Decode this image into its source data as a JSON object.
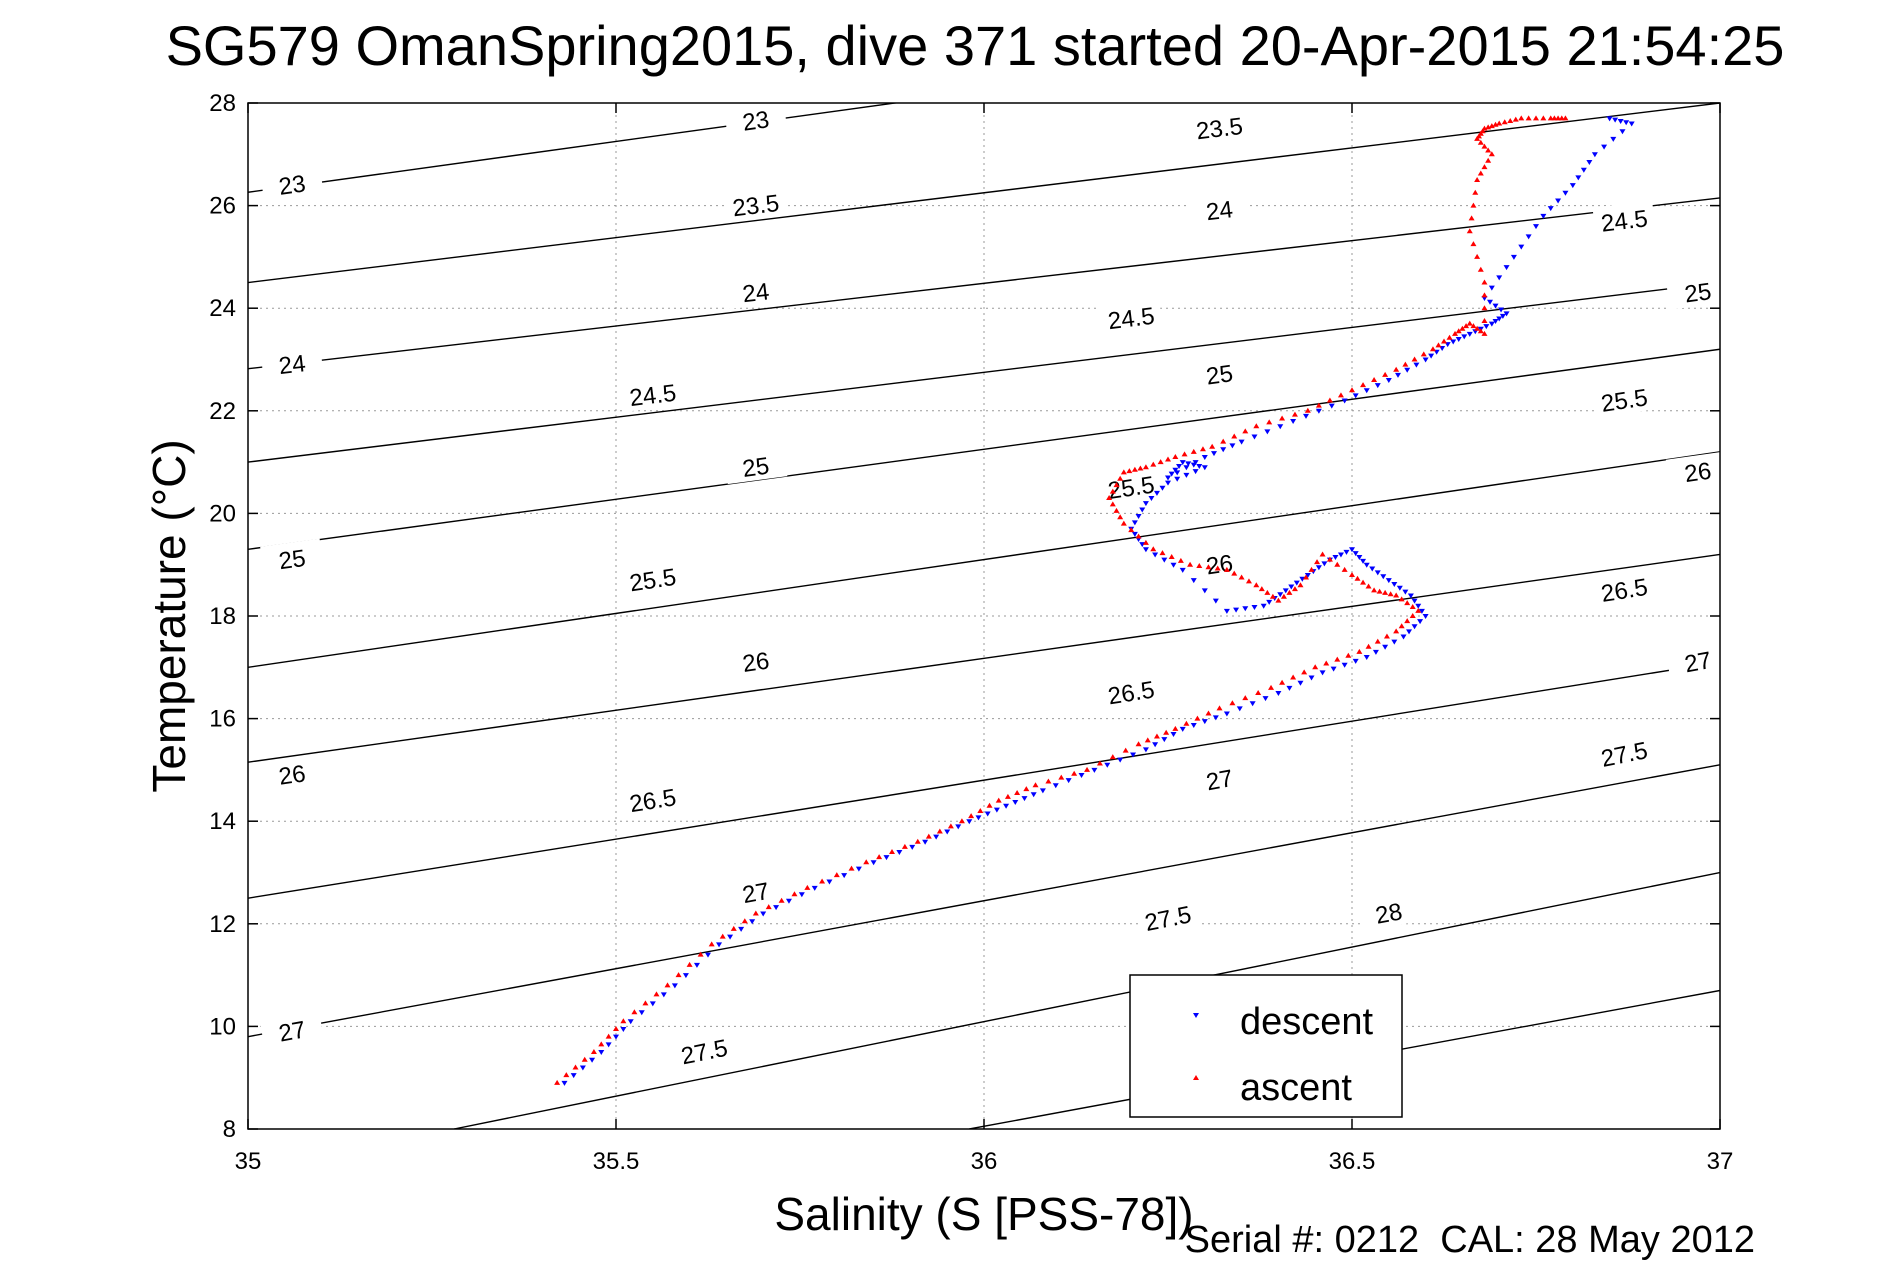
{
  "chart_data": {
    "type": "scatter",
    "title": "SG579 OmanSpring2015, dive 371 started 20-Apr-2015 21:54:25",
    "xlabel": "Salinity (S [PSS-78])",
    "ylabel": "Temperature (°C)",
    "xlim": [
      35,
      37
    ],
    "ylim": [
      8,
      28
    ],
    "x_ticks": [
      "35",
      "35.5",
      "36",
      "36.5",
      "37"
    ],
    "y_ticks": [
      "8",
      "10",
      "12",
      "14",
      "16",
      "18",
      "20",
      "22",
      "24",
      "26",
      "28"
    ],
    "grid": true,
    "legend_position": "bottom-right",
    "footer": "Serial #: 0212  CAL: 28 May 2012",
    "colors": {
      "descent": "#0000ff",
      "ascent": "#ff0000",
      "contours": "#000000"
    },
    "density_contours": [
      {
        "label": "23",
        "points": [
          [
            35.0,
            26.26
          ],
          [
            37.0,
            30.22
          ]
        ],
        "label_at": [
          [
            35.06,
            26.4
          ],
          [
            35.69,
            27.65
          ]
        ]
      },
      {
        "label": "23.5",
        "points": [
          [
            35.0,
            24.5
          ],
          [
            37.0,
            28.0
          ]
        ],
        "label_at": [
          [
            35.69,
            26.0
          ],
          [
            36.32,
            27.5
          ]
        ]
      },
      {
        "label": "24",
        "points": [
          [
            35.0,
            22.82
          ],
          [
            37.0,
            26.15
          ]
        ],
        "label_at": [
          [
            35.06,
            22.9
          ],
          [
            35.69,
            24.3
          ],
          [
            36.32,
            25.9
          ]
        ]
      },
      {
        "label": "24.5",
        "points": [
          [
            35.0,
            21.0
          ],
          [
            37.0,
            24.5
          ]
        ],
        "label_at": [
          [
            35.55,
            22.3
          ],
          [
            36.2,
            23.8
          ],
          [
            36.87,
            25.7
          ]
        ]
      },
      {
        "label": "25",
        "points": [
          [
            35.0,
            19.3
          ],
          [
            37.0,
            23.2
          ]
        ],
        "label_at": [
          [
            35.06,
            19.1
          ],
          [
            35.69,
            20.9
          ],
          [
            36.32,
            22.7
          ],
          [
            36.97,
            24.3
          ]
        ]
      },
      {
        "label": "25.5",
        "points": [
          [
            35.0,
            17.0
          ],
          [
            37.0,
            21.2
          ]
        ],
        "label_at": [
          [
            35.55,
            18.7
          ],
          [
            36.2,
            20.5
          ],
          [
            36.87,
            22.2
          ]
        ]
      },
      {
        "label": "26",
        "points": [
          [
            35.0,
            15.15
          ],
          [
            37.0,
            19.2
          ]
        ],
        "label_at": [
          [
            35.06,
            14.9
          ],
          [
            35.69,
            17.1
          ],
          [
            36.32,
            19.0
          ],
          [
            36.97,
            20.8
          ]
        ]
      },
      {
        "label": "26.5",
        "points": [
          [
            35.0,
            12.5
          ],
          [
            37.0,
            17.1
          ]
        ],
        "label_at": [
          [
            35.55,
            14.4
          ],
          [
            36.2,
            16.5
          ],
          [
            36.87,
            18.5
          ]
        ]
      },
      {
        "label": "27",
        "points": [
          [
            35.0,
            9.8
          ],
          [
            37.0,
            15.1
          ]
        ],
        "label_at": [
          [
            35.06,
            9.9
          ],
          [
            35.69,
            12.6
          ],
          [
            36.32,
            14.8
          ],
          [
            36.97,
            17.1
          ]
        ]
      },
      {
        "label": "27.5",
        "points": [
          [
            35.28,
            8.0
          ],
          [
            37.0,
            13.0
          ]
        ],
        "label_at": [
          [
            35.62,
            9.5
          ],
          [
            36.25,
            12.1
          ],
          [
            36.87,
            15.3
          ]
        ]
      },
      {
        "label": "28",
        "points": [
          [
            35.98,
            8.0
          ],
          [
            37.0,
            10.7
          ]
        ],
        "label_at": [
          [
            36.55,
            12.2
          ]
        ]
      }
    ],
    "series": [
      {
        "name": "descent",
        "marker": "triangle-down",
        "x": [
          35.43,
          35.48,
          35.52,
          35.58,
          35.64,
          35.7,
          35.77,
          35.85,
          35.92,
          35.98,
          36.03,
          36.08,
          36.15,
          36.22,
          36.27,
          36.33,
          36.4,
          36.46,
          36.52,
          36.57,
          36.6,
          36.58,
          36.55,
          36.52,
          36.5,
          36.47,
          36.44,
          36.41,
          36.38,
          36.33,
          36.27,
          36.22,
          36.2,
          36.22,
          36.25,
          36.3,
          36.27,
          36.25,
          36.3,
          36.35,
          36.42,
          36.49,
          36.55,
          36.6,
          36.63,
          36.66,
          36.69,
          36.71,
          36.68,
          36.72,
          36.76,
          36.8,
          36.83,
          36.88,
          36.85
        ],
        "y": [
          8.9,
          9.5,
          10.1,
          10.8,
          11.6,
          12.2,
          12.7,
          13.2,
          13.6,
          14.0,
          14.3,
          14.6,
          15.0,
          15.4,
          15.8,
          16.1,
          16.5,
          16.9,
          17.2,
          17.6,
          18.0,
          18.4,
          18.7,
          19.0,
          19.3,
          19.1,
          18.8,
          18.5,
          18.2,
          18.1,
          18.9,
          19.3,
          19.7,
          20.2,
          20.6,
          20.9,
          21.0,
          20.7,
          21.1,
          21.4,
          21.8,
          22.2,
          22.6,
          23.0,
          23.3,
          23.5,
          23.7,
          23.9,
          24.2,
          25.0,
          25.8,
          26.4,
          27.0,
          27.6,
          27.7
        ]
      },
      {
        "name": "ascent",
        "marker": "triangle-up",
        "x": [
          35.42,
          35.47,
          35.51,
          35.57,
          35.63,
          35.69,
          35.76,
          35.84,
          35.91,
          35.97,
          36.02,
          36.07,
          36.14,
          36.21,
          36.26,
          36.32,
          36.39,
          36.45,
          36.51,
          36.56,
          36.59,
          36.56,
          36.53,
          36.5,
          36.46,
          36.43,
          36.4,
          36.37,
          36.33,
          36.28,
          36.23,
          36.19,
          36.17,
          36.19,
          36.22,
          36.26,
          36.31,
          36.37,
          36.44,
          36.5,
          36.56,
          36.61,
          36.64,
          36.66,
          36.68,
          36.68,
          36.66,
          36.67,
          36.69,
          36.67,
          36.68,
          36.7,
          36.73,
          36.77,
          36.79
        ],
        "y": [
          8.9,
          9.5,
          10.1,
          10.8,
          11.6,
          12.2,
          12.7,
          13.2,
          13.6,
          14.0,
          14.4,
          14.7,
          15.0,
          15.5,
          15.8,
          16.2,
          16.6,
          17.0,
          17.3,
          17.7,
          18.1,
          18.4,
          18.5,
          18.8,
          19.2,
          18.6,
          18.3,
          18.6,
          18.9,
          19.0,
          19.3,
          19.8,
          20.3,
          20.8,
          20.9,
          21.1,
          21.3,
          21.7,
          22.0,
          22.4,
          22.8,
          23.2,
          23.5,
          23.7,
          23.5,
          24.5,
          25.5,
          26.5,
          27.0,
          27.3,
          27.5,
          27.6,
          27.7,
          27.7,
          27.7
        ]
      }
    ]
  }
}
